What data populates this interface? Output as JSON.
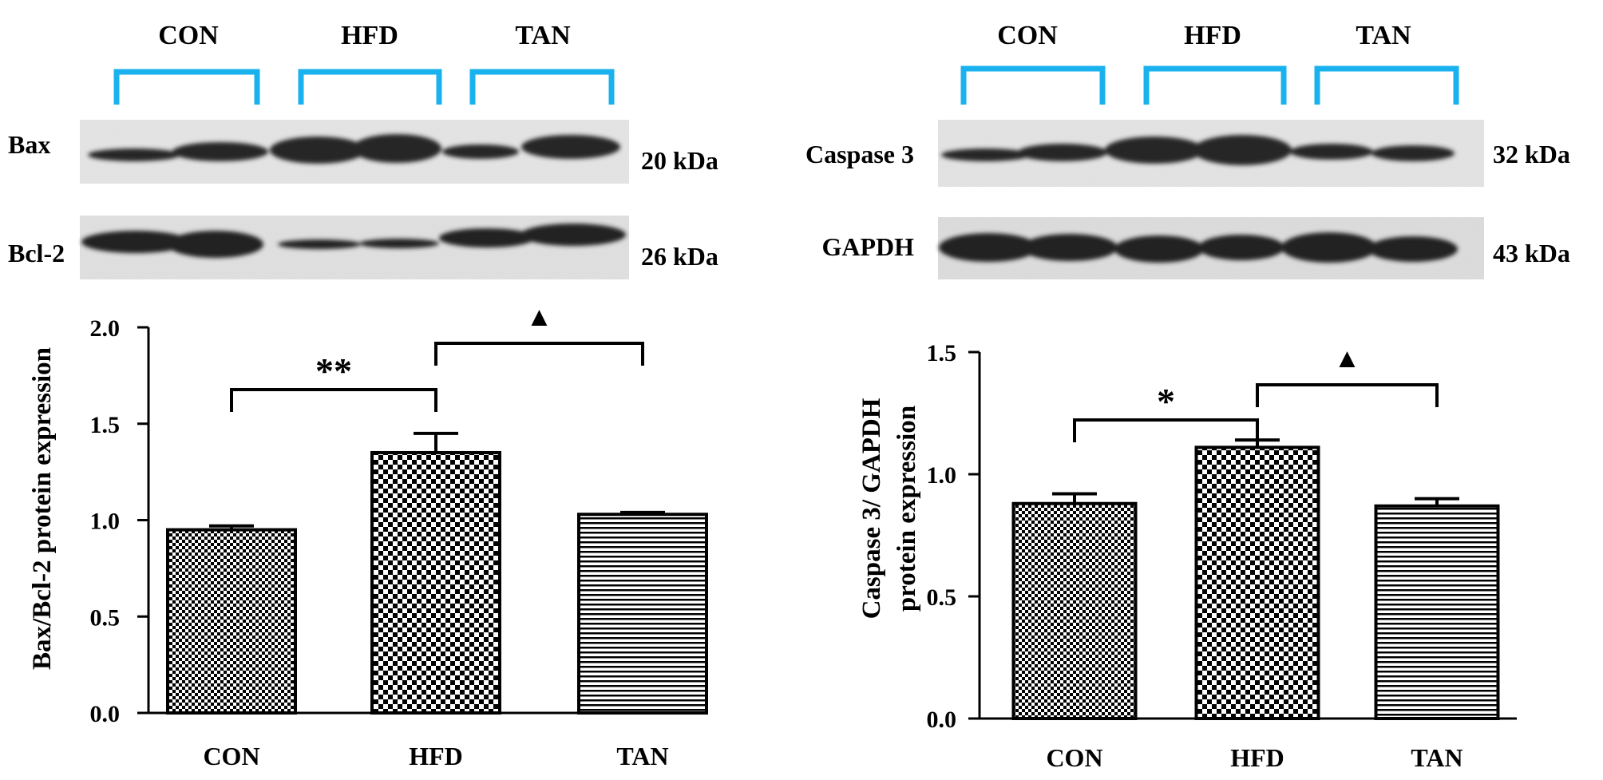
{
  "group_labels": [
    "CON",
    "HFD",
    "TAN"
  ],
  "bracket_color": "#1ab2ee",
  "bar_stroke_color": "#000000",
  "blots": {
    "left": [
      {
        "protein": "Bax",
        "size": "20 kDa"
      },
      {
        "protein": "Bcl-2",
        "size": "26 kDa"
      }
    ],
    "right": [
      {
        "protein": "Caspase 3",
        "size": "32 kDa"
      },
      {
        "protein": "GAPDH",
        "size": "43 kDa"
      }
    ]
  },
  "chart_data": [
    {
      "type": "bar",
      "categories": [
        "CON",
        "HFD",
        "TAN"
      ],
      "values": [
        0.95,
        1.35,
        1.03
      ],
      "errors": [
        0.02,
        0.1,
        0.01
      ],
      "ylabel": "Bax/Bcl-2 protein expression",
      "xlabel": "",
      "ylim": [
        0,
        2.0
      ],
      "yticks": [
        0.0,
        0.5,
        1.0,
        1.5,
        2.0
      ],
      "tick_labels": [
        "0.0",
        "0.5",
        "1.0",
        "1.5",
        "2.0"
      ],
      "patterns": [
        "fine-check",
        "coarse-check",
        "horizontal-lines"
      ],
      "grid": false,
      "significance": [
        {
          "from": "CON",
          "to": "HFD",
          "label": "**"
        },
        {
          "from": "HFD",
          "to": "TAN",
          "label": "▲"
        }
      ]
    },
    {
      "type": "bar",
      "categories": [
        "CON",
        "HFD",
        "TAN"
      ],
      "values": [
        0.88,
        1.11,
        0.87
      ],
      "errors": [
        0.04,
        0.03,
        0.03
      ],
      "ylabel": "Caspase 3/ GAPDH protein expression",
      "ylabel_lines": [
        "Caspase 3/ GAPDH",
        "protein expression"
      ],
      "xlabel": "",
      "ylim": [
        0,
        1.5
      ],
      "yticks": [
        0.0,
        0.5,
        1.0,
        1.5
      ],
      "tick_labels": [
        "0.0",
        "0.5",
        "1.0",
        "1.5"
      ],
      "patterns": [
        "fine-check",
        "coarse-check",
        "horizontal-lines"
      ],
      "grid": false,
      "significance": [
        {
          "from": "CON",
          "to": "HFD",
          "label": "*"
        },
        {
          "from": "HFD",
          "to": "TAN",
          "label": "▲"
        }
      ]
    }
  ]
}
